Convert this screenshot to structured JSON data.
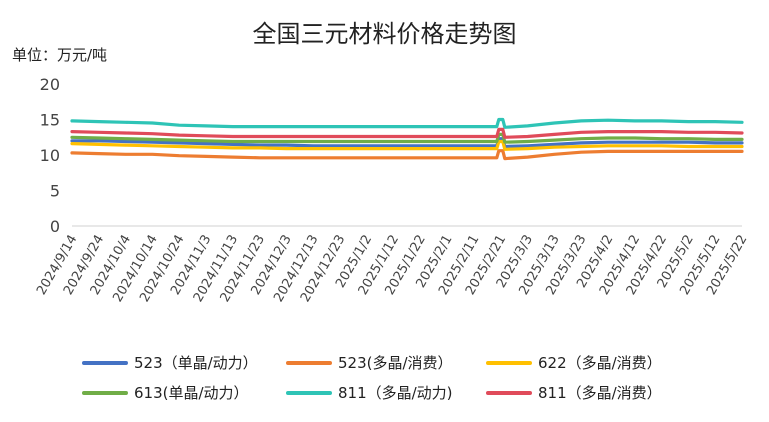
{
  "chart_data": {
    "type": "line",
    "title": "全国三元材料价格走势图",
    "unit_label": "单位：万元/吨",
    "ylim": [
      0,
      20
    ],
    "yticks": [
      0,
      5,
      10,
      15,
      20
    ],
    "grid": false,
    "legend_position": "bottom",
    "x_tick_labels": [
      "2024/9/14",
      "2024/9/24",
      "2024/10/4",
      "2024/10/14",
      "2024/10/24",
      "2024/11/3",
      "2024/11/13",
      "2024/11/23",
      "2024/12/3",
      "2024/12/13",
      "2024/12/23",
      "2025/1/2",
      "2025/1/12",
      "2025/1/22",
      "2025/2/1",
      "2025/2/11",
      "2025/2/21",
      "2025/3/3",
      "2025/3/13",
      "2025/3/23",
      "2025/4/2",
      "2025/4/12",
      "2025/4/22",
      "2025/5/2",
      "2025/5/12",
      "2025/5/22"
    ],
    "series": [
      {
        "name": "523（单晶/动力）",
        "color": "#4472C4",
        "values": [
          12.0,
          12.0,
          11.9,
          11.8,
          11.7,
          11.6,
          11.5,
          11.4,
          11.4,
          11.3,
          11.3,
          11.3,
          11.3,
          11.3,
          11.3,
          11.3,
          11.3,
          11.3,
          11.5,
          11.7,
          11.8,
          11.8,
          11.8,
          11.8,
          11.7,
          11.7
        ]
      },
      {
        "name": "523(多晶/消费）",
        "color": "#ED7D31",
        "values": [
          10.3,
          10.2,
          10.1,
          10.1,
          9.9,
          9.8,
          9.7,
          9.6,
          9.6,
          9.6,
          9.6,
          9.6,
          9.6,
          9.6,
          9.6,
          9.6,
          9.6,
          9.7,
          10.1,
          10.4,
          10.5,
          10.5,
          10.5,
          10.5,
          10.5,
          10.5
        ]
      },
      {
        "name": "622（多晶/消费）",
        "color": "#FFC000",
        "values": [
          11.6,
          11.5,
          11.4,
          11.3,
          11.2,
          11.1,
          11.0,
          11.0,
          10.9,
          10.9,
          10.9,
          10.9,
          10.9,
          10.9,
          10.9,
          10.9,
          10.9,
          10.9,
          11.1,
          11.2,
          11.3,
          11.3,
          11.3,
          11.2,
          11.2,
          11.2
        ]
      },
      {
        "name": "613(单晶/动力）",
        "color": "#70AD47",
        "values": [
          12.5,
          12.4,
          12.3,
          12.2,
          12.1,
          12.0,
          11.9,
          11.9,
          11.9,
          11.9,
          11.9,
          11.9,
          11.9,
          11.9,
          11.9,
          11.9,
          11.9,
          11.9,
          12.1,
          12.3,
          12.4,
          12.4,
          12.3,
          12.3,
          12.2,
          12.2
        ]
      },
      {
        "name": "811（多晶/动力)",
        "color": "#2EC4B6",
        "values": [
          14.8,
          14.7,
          14.6,
          14.5,
          14.2,
          14.1,
          14.0,
          14.0,
          14.0,
          14.0,
          14.0,
          14.0,
          14.0,
          14.0,
          14.0,
          14.0,
          14.0,
          14.1,
          14.5,
          14.8,
          14.9,
          14.8,
          14.8,
          14.7,
          14.7,
          14.6
        ]
      },
      {
        "name": "811（多晶/消费）",
        "color": "#E04B5A",
        "values": [
          13.3,
          13.2,
          13.1,
          13.0,
          12.8,
          12.7,
          12.6,
          12.6,
          12.6,
          12.6,
          12.6,
          12.6,
          12.6,
          12.6,
          12.6,
          12.6,
          12.6,
          12.6,
          12.9,
          13.2,
          13.3,
          13.3,
          13.3,
          13.2,
          13.2,
          13.1
        ]
      }
    ]
  }
}
